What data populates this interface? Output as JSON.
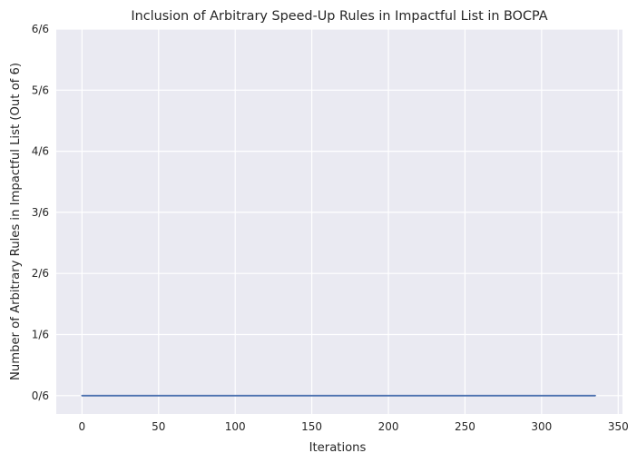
{
  "chart_data": {
    "type": "line",
    "title": "Inclusion of Arbitrary Speed-Up Rules in Impactful List in BOCPA",
    "xlabel": "Iterations",
    "ylabel": "Number of Arbitrary Rules in Impactful List (Out of 6)",
    "x_ticks": [
      0,
      50,
      100,
      150,
      200,
      250,
      300,
      350
    ],
    "y_ticks": [
      0,
      1,
      2,
      3,
      4,
      5,
      6
    ],
    "y_tick_labels": [
      "0/6",
      "1/6",
      "2/6",
      "3/6",
      "4/6",
      "5/6",
      "6/6"
    ],
    "xlim": [
      -16.8,
      352.8
    ],
    "ylim": [
      -0.3,
      6
    ],
    "grid": true,
    "series": [
      {
        "x": [
          0,
          335
        ],
        "y": [
          0,
          0
        ]
      }
    ]
  },
  "colors": {
    "background": "#eaeaf2",
    "grid": "#ffffff",
    "line": "#4c72b0",
    "text": "#262626"
  }
}
